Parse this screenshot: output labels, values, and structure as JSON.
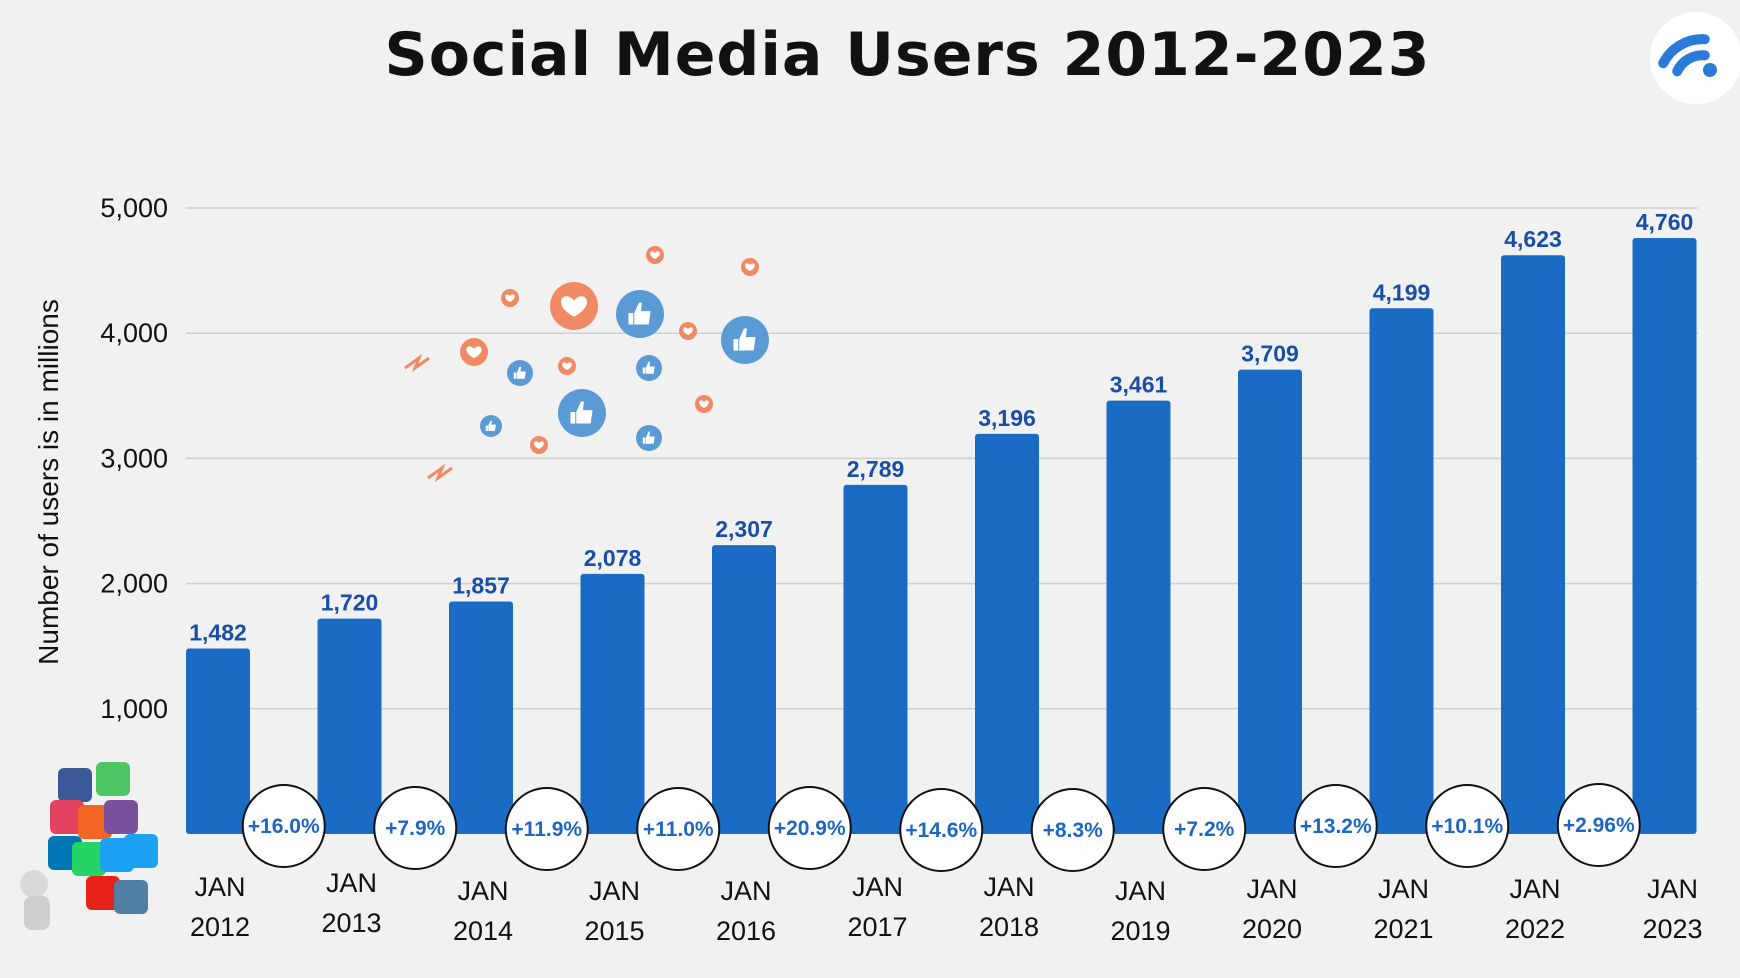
{
  "title": "Social Media Users 2012-2023",
  "chart_data": {
    "type": "bar",
    "title": "Social Media Users 2012-2023",
    "ylabel": "Number of users is in millions",
    "xlabel": "",
    "ylim": [
      0,
      5000
    ],
    "yticks": [
      "1,000",
      "2,000",
      "3,000",
      "4,000",
      "5,000"
    ],
    "ytick_values": [
      1000,
      2000,
      3000,
      4000,
      5000
    ],
    "grid": true,
    "categories": [
      [
        "JAN",
        "2012"
      ],
      [
        "JAN",
        "2013"
      ],
      [
        "JAN",
        "2014"
      ],
      [
        "JAN",
        "2015"
      ],
      [
        "JAN",
        "2016"
      ],
      [
        "JAN",
        "2017"
      ],
      [
        "JAN",
        "2018"
      ],
      [
        "JAN",
        "2019"
      ],
      [
        "JAN",
        "2020"
      ],
      [
        "JAN",
        "2021"
      ],
      [
        "JAN",
        "2022"
      ],
      [
        "JAN",
        "2023"
      ]
    ],
    "values": [
      1482,
      1720,
      1857,
      2078,
      2307,
      2789,
      3196,
      3461,
      3709,
      4199,
      4623,
      4760
    ],
    "value_labels": [
      "1,482",
      "1,720",
      "1,857",
      "2,078",
      "2,307",
      "2,789",
      "3,196",
      "3,461",
      "3,709",
      "4,199",
      "4,623",
      "4,760"
    ],
    "growth_labels": [
      "+16.0%",
      "+7.9%",
      "+11.9%",
      "+11.0%",
      "+20.9%",
      "+14.6%",
      "+8.3%",
      "+7.2%",
      "+13.2%",
      "+10.1%",
      "+2.96%"
    ],
    "bar_color": "#1a6bc4",
    "label_color": "#1a4da6"
  },
  "decorations": {
    "logo": "wifi-signal-icon",
    "reaction_cluster": [
      "heart-icon",
      "thumbs-up-icon",
      "pointing-hand-icon"
    ],
    "social_icons": [
      "facebook-icon",
      "whatsapp-icon",
      "twitter-icon",
      "instagram-icon",
      "youtube-icon",
      "pinterest-icon",
      "rss-icon",
      "viber-icon",
      "vine-icon",
      "skype-icon",
      "line-icon"
    ],
    "colors": {
      "heart": "#f08a64",
      "like": "#5b9bd5",
      "logo": "#2a7ad8"
    }
  }
}
